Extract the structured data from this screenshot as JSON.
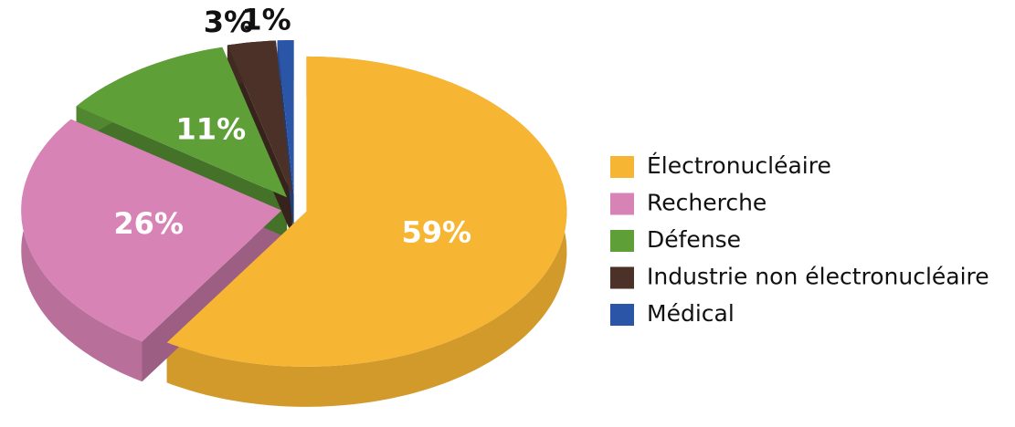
{
  "chart_data": {
    "type": "pie",
    "categories": [
      "Électronucléaire",
      "Recherche",
      "Défense",
      "Industrie non électronucléaire",
      "Médical"
    ],
    "values": [
      59,
      26,
      11,
      3,
      1
    ],
    "value_labels": [
      "59%",
      "26%",
      "11%",
      "3%",
      "1%"
    ],
    "colors": [
      "#f6b533",
      "#d883b5",
      "#5e9f38",
      "#4b3127",
      "#2b55a6"
    ],
    "legend": "right"
  }
}
